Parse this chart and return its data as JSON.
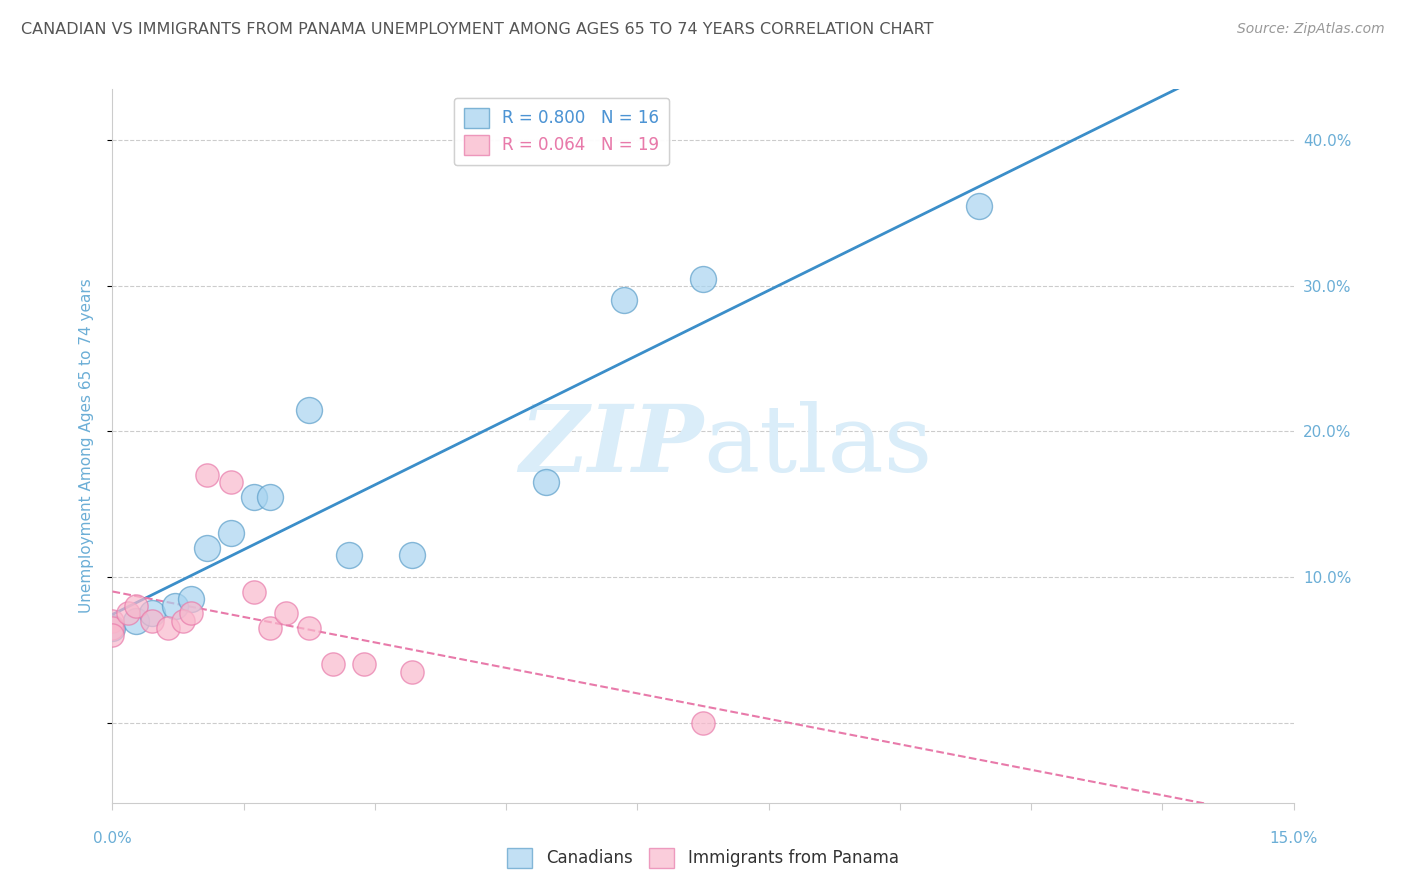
{
  "title": "CANADIAN VS IMMIGRANTS FROM PANAMA UNEMPLOYMENT AMONG AGES 65 TO 74 YEARS CORRELATION CHART",
  "source": "Source: ZipAtlas.com",
  "ylabel": "Unemployment Among Ages 65 to 74 years",
  "xmin": 0.0,
  "xmax": 0.15,
  "ymin": -0.055,
  "ymax": 0.435,
  "yticks": [
    0.0,
    0.1,
    0.2,
    0.3,
    0.4
  ],
  "ytick_labels": [
    "",
    "10.0%",
    "20.0%",
    "30.0%",
    "40.0%"
  ],
  "canadians_x": [
    0.0,
    0.003,
    0.005,
    0.008,
    0.01,
    0.012,
    0.015,
    0.018,
    0.02,
    0.025,
    0.03,
    0.038,
    0.055,
    0.065,
    0.075,
    0.11
  ],
  "canadians_y": [
    0.065,
    0.07,
    0.075,
    0.08,
    0.085,
    0.12,
    0.13,
    0.155,
    0.155,
    0.215,
    0.115,
    0.115,
    0.165,
    0.29,
    0.305,
    0.355
  ],
  "panama_x": [
    0.0,
    0.0,
    0.0,
    0.002,
    0.003,
    0.005,
    0.007,
    0.009,
    0.01,
    0.012,
    0.015,
    0.018,
    0.02,
    0.022,
    0.025,
    0.028,
    0.032,
    0.038,
    0.075
  ],
  "panama_y": [
    0.07,
    0.065,
    0.06,
    0.075,
    0.08,
    0.07,
    0.065,
    0.07,
    0.075,
    0.17,
    0.165,
    0.09,
    0.065,
    0.075,
    0.065,
    0.04,
    0.04,
    0.035,
    0.0
  ],
  "canadian_R": 0.8,
  "canadian_N": 16,
  "panama_R": 0.064,
  "panama_N": 19,
  "blue_fill": "#a8d4f0",
  "pink_fill": "#f9b8cc",
  "blue_edge": "#5b9ec9",
  "pink_edge": "#e87aaa",
  "blue_line": "#3b8ec9",
  "pink_line": "#e87aaa",
  "bg_color": "#ffffff",
  "grid_color": "#cccccc",
  "watermark_color": "#daedf9",
  "title_color": "#555555",
  "axis_label_color": "#6baed6",
  "tick_color": "#6baed6"
}
